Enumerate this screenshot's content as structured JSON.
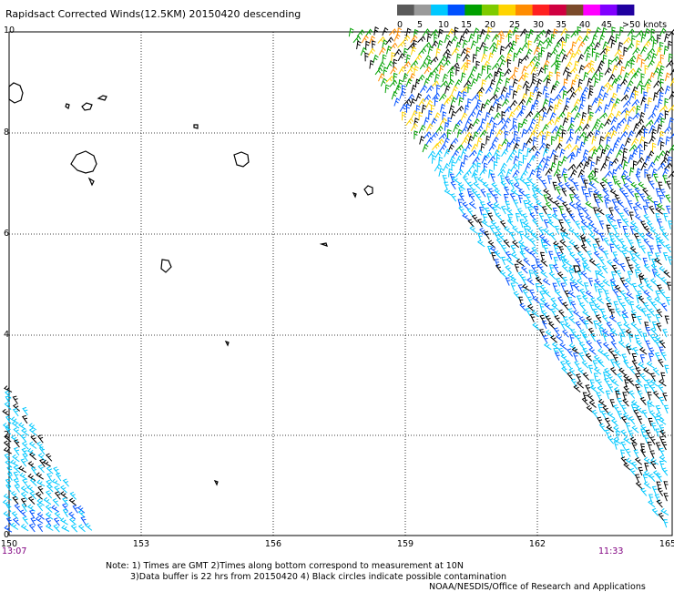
{
  "title": "Rapidsact Corrected Winds(12.5KM) 20150420 descending",
  "speed_scale": {
    "labels": [
      "0",
      "5",
      "10",
      "15",
      "20",
      "25",
      "30",
      "35",
      "40",
      "45",
      ">50 knots"
    ],
    "colors": [
      "#5a5a5a",
      "#9a9a9a",
      "#00c8ff",
      "#0050ff",
      "#00a000",
      "#7ecb00",
      "#ffd400",
      "#ff8c00",
      "#ff2020",
      "#d00040",
      "#7b4a2a",
      "#ff00ff",
      "#8000ff",
      "#2000a0"
    ]
  },
  "axes": {
    "lon_ticks": [
      "150",
      "153",
      "156",
      "159",
      "162",
      "165"
    ],
    "lat_ticks": [
      "0",
      "2",
      "4",
      "6",
      "8",
      "10"
    ]
  },
  "times": {
    "left": "13:07",
    "right": "11:33"
  },
  "notes": {
    "line1": "Note: 1) Times are GMT 2)Times along bottom correspond to measurement at 10N",
    "line2": "3)Data buffer is 22 hrs from 20150420 4) Black circles indicate possible contamination",
    "line3": "NOAA/NESDIS/Office of Research and Applications"
  }
}
